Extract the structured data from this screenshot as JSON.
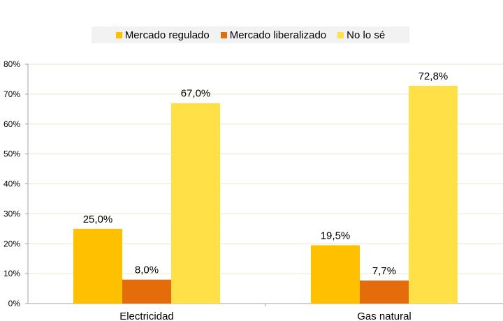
{
  "chart_data": {
    "type": "bar",
    "categories": [
      "Electricidad",
      "Gas natural"
    ],
    "series": [
      {
        "name": "Mercado regulado",
        "values": [
          25.0,
          19.5
        ],
        "labels": [
          "25,0%",
          "19,5%"
        ],
        "color": "#ffc000"
      },
      {
        "name": "Mercado liberalizado",
        "values": [
          8.0,
          7.7
        ],
        "labels": [
          "8,0%",
          "7,7%"
        ],
        "color": "#e46c0a"
      },
      {
        "name": "No lo sé",
        "values": [
          67.0,
          72.8
        ],
        "labels": [
          "67,0%",
          "72,8%"
        ],
        "color": "#ffe047"
      }
    ],
    "yticks": [
      "0%",
      "10%",
      "20%",
      "30%",
      "40%",
      "50%",
      "60%",
      "70%",
      "80%"
    ],
    "ylim": [
      0,
      80
    ],
    "grid": true,
    "gridline_color": "#e8e8c8",
    "legend_position": "top"
  }
}
